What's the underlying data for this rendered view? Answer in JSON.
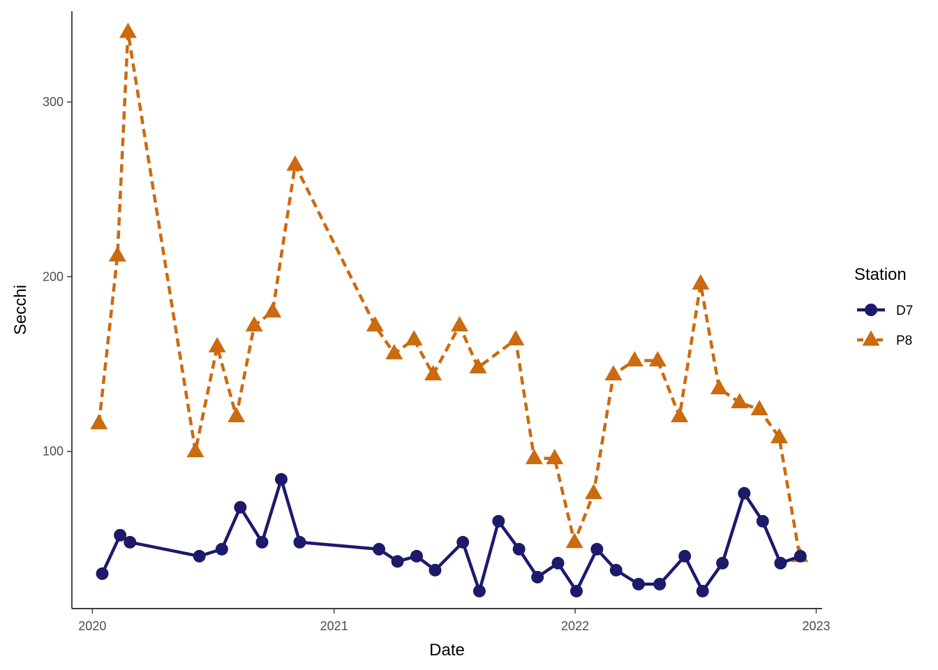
{
  "chart_data": {
    "type": "line",
    "title": "",
    "xlabel": "Date",
    "ylabel": "Secchi",
    "x_ticks": [
      "2020",
      "2021",
      "2022",
      "2023"
    ],
    "y_ticks": [
      100,
      200,
      300
    ],
    "xlim": [
      "2019-12-01",
      "2023-01-10"
    ],
    "ylim": [
      10,
      352
    ],
    "grid": false,
    "legend": {
      "title": "Station",
      "position": "right"
    },
    "colors": {
      "D7": "#1b1a6b",
      "P8": "#cc6a10"
    },
    "series": [
      {
        "name": "D7",
        "marker": "circle",
        "line": "solid",
        "points": [
          [
            "2020-01-16",
            30
          ],
          [
            "2020-02-12",
            52
          ],
          [
            "2020-02-27",
            48
          ],
          [
            "2020-06-11",
            40
          ],
          [
            "2020-07-15",
            44
          ],
          [
            "2020-08-12",
            68
          ],
          [
            "2020-09-14",
            48
          ],
          [
            "2020-10-13",
            84
          ],
          [
            "2020-11-10",
            48
          ],
          [
            "2021-03-10",
            44
          ],
          [
            "2021-04-07",
            37
          ],
          [
            "2021-05-06",
            40
          ],
          [
            "2021-06-03",
            32
          ],
          [
            "2021-07-15",
            48
          ],
          [
            "2021-08-09",
            20
          ],
          [
            "2021-09-07",
            60
          ],
          [
            "2021-10-08",
            44
          ],
          [
            "2021-11-05",
            28
          ],
          [
            "2021-12-06",
            36
          ],
          [
            "2022-01-03",
            20
          ],
          [
            "2022-02-03",
            44
          ],
          [
            "2022-03-04",
            32
          ],
          [
            "2022-04-07",
            24
          ],
          [
            "2022-05-09",
            24
          ],
          [
            "2022-06-16",
            40
          ],
          [
            "2022-07-13",
            20
          ],
          [
            "2022-08-12",
            36
          ],
          [
            "2022-09-14",
            76
          ],
          [
            "2022-10-12",
            60
          ],
          [
            "2022-11-08",
            36
          ],
          [
            "2022-12-08",
            40
          ]
        ]
      },
      {
        "name": "P8",
        "marker": "triangle",
        "line": "dashed",
        "points": [
          [
            "2020-01-11",
            116
          ],
          [
            "2020-02-08",
            212
          ],
          [
            "2020-02-24",
            340
          ],
          [
            "2020-06-05",
            100
          ],
          [
            "2020-07-08",
            160
          ],
          [
            "2020-08-06",
            120
          ],
          [
            "2020-09-02",
            172
          ],
          [
            "2020-09-30",
            180
          ],
          [
            "2020-11-03",
            264
          ],
          [
            "2021-03-04",
            172
          ],
          [
            "2021-04-02",
            156
          ],
          [
            "2021-05-02",
            164
          ],
          [
            "2021-05-31",
            144
          ],
          [
            "2021-07-10",
            172
          ],
          [
            "2021-08-07",
            148
          ],
          [
            "2021-10-03",
            164
          ],
          [
            "2021-10-31",
            96
          ],
          [
            "2021-12-01",
            96
          ],
          [
            "2021-12-31",
            48
          ],
          [
            "2022-01-29",
            76
          ],
          [
            "2022-02-28",
            144
          ],
          [
            "2022-04-01",
            152
          ],
          [
            "2022-05-06",
            152
          ],
          [
            "2022-06-08",
            120
          ],
          [
            "2022-07-10",
            196
          ],
          [
            "2022-08-07",
            136
          ],
          [
            "2022-09-07",
            128
          ],
          [
            "2022-10-07",
            124
          ],
          [
            "2022-11-06",
            108
          ],
          [
            "2022-12-07",
            40
          ]
        ]
      }
    ]
  }
}
